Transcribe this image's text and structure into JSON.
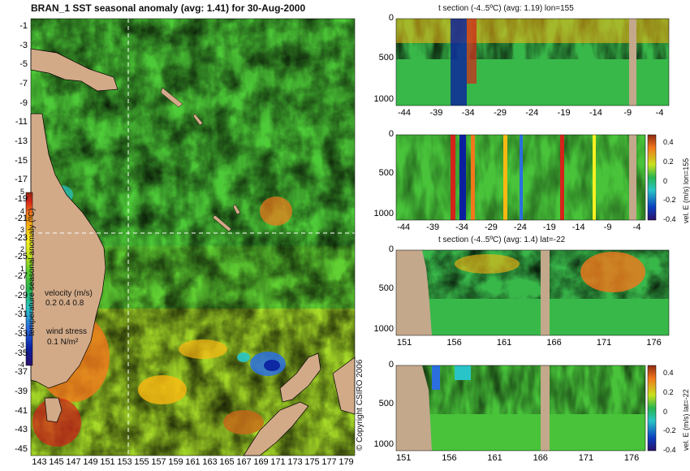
{
  "colors": {
    "land": "#d2aa88",
    "panel_bg": "#ffffff",
    "mask": "#c4a88c",
    "colormap": [
      "#2b1069",
      "#0a1fa0",
      "#2a6ee0",
      "#28c4c8",
      "#27b54f",
      "#61cf2d",
      "#c8e21d",
      "#f7f020",
      "#fbb812",
      "#f2771b",
      "#d5231a",
      "#8e2a12"
    ]
  },
  "map": {
    "title": "BRAN_1  SST seasonal anomaly  (avg: 1.41)  for 30-Aug-2000",
    "y_ticks": [
      "-1",
      "-3",
      "-5",
      "-7",
      "-9",
      "-11",
      "-13",
      "-15",
      "-17",
      "-19",
      "-21",
      "-23",
      "-25",
      "-27",
      "-29",
      "-31",
      "-33",
      "-35",
      "-37",
      "-39",
      "-41",
      "-43",
      "-45"
    ],
    "x_ticks": [
      "143",
      "145",
      "147",
      "149",
      "151",
      "153",
      "155",
      "157",
      "159",
      "161",
      "163",
      "165",
      "167",
      "169",
      "171",
      "173",
      "175",
      "177",
      "179"
    ],
    "colorbar": {
      "ticks": [
        "5",
        "4",
        "3",
        "2",
        "1",
        "0",
        "-1",
        "-2",
        "-3",
        "-4"
      ],
      "label": "temperature seasonal anomaly (ºC)",
      "range": [
        -4,
        5
      ]
    },
    "velocity_label": "velocity (m/s)",
    "velocity_scale": "0.2 0.4 0.8",
    "wind_label": "wind stress",
    "wind_scale": "0.1 N/m²",
    "section_lon": 155,
    "section_lat": -22
  },
  "panels": [
    {
      "id": "t-lon",
      "title": "t section (-4..5ºC) (avg: 1.19) lon=155",
      "x_ticks": [
        "-44",
        "-39",
        "-34",
        "-29",
        "-24",
        "-19",
        "-14",
        "-9",
        "-4"
      ],
      "y_ticks": [
        "0",
        "500",
        "1000"
      ],
      "colorbar_label": ""
    },
    {
      "id": "u-lon",
      "title": "",
      "x_ticks": [
        "-44",
        "-39",
        "-34",
        "-29",
        "-24",
        "-19",
        "-14",
        "-9",
        "-4"
      ],
      "y_ticks": [
        "0",
        "500",
        "1000"
      ],
      "colorbar_label": "vel. E (m/s) lon=155",
      "colorbar_ticks": [
        "0.4",
        "0.2",
        "0",
        "-0.2",
        "-0.4"
      ]
    },
    {
      "id": "t-lat",
      "title": "t section (-4..5ºC) (avg: 1.4) lat=-22",
      "x_ticks": [
        "151",
        "156",
        "161",
        "166",
        "171",
        "176"
      ],
      "y_ticks": [
        "0",
        "500",
        "1000"
      ],
      "colorbar_label": ""
    },
    {
      "id": "u-lat",
      "title": "",
      "x_ticks": [
        "151",
        "156",
        "161",
        "166",
        "171",
        "176"
      ],
      "y_ticks": [
        "0",
        "500",
        "1000"
      ],
      "colorbar_label": "vel. E (m/s) lat=-22",
      "colorbar_ticks": [
        "0.4",
        "0.2",
        "0",
        "-0.2",
        "-0.4"
      ]
    }
  ],
  "copyright": "© Copyright CSIRO 2006",
  "chart_data": [
    {
      "type": "heatmap",
      "title": "BRAN_1  SST seasonal anomaly  (avg: 1.41)  for 30-Aug-2000",
      "xlabel": "",
      "ylabel": "",
      "xlim": [
        142,
        180
      ],
      "ylim": [
        -45,
        0
      ],
      "x_tick_labels": [
        "143",
        "145",
        "147",
        "149",
        "151",
        "153",
        "155",
        "157",
        "159",
        "161",
        "163",
        "165",
        "167",
        "169",
        "171",
        "173",
        "175",
        "177",
        "179"
      ],
      "y_tick_labels": [
        "-1",
        "-3",
        "-5",
        "-7",
        "-9",
        "-11",
        "-13",
        "-15",
        "-17",
        "-19",
        "-21",
        "-23",
        "-25",
        "-27",
        "-29",
        "-31",
        "-33",
        "-35",
        "-37",
        "-39",
        "-41",
        "-43",
        "-45"
      ],
      "value_range": [
        -4,
        5
      ],
      "average": 1.41,
      "date": "30-Aug-2000"
    },
    {
      "type": "heatmap",
      "title": "t section (-4..5ºC) (avg: 1.19) lon=155",
      "xlim": [
        -45,
        -1
      ],
      "ylim": [
        1050,
        0
      ],
      "average": 1.19,
      "value_range": [
        -4,
        5
      ]
    },
    {
      "type": "heatmap",
      "title": "",
      "colorbar_label": "vel. E (m/s) lon=155",
      "xlim": [
        -45,
        -1
      ],
      "ylim": [
        1050,
        0
      ],
      "value_range": [
        -0.4,
        0.4
      ]
    },
    {
      "type": "heatmap",
      "title": "t section (-4..5ºC) (avg: 1.4) lat=-22",
      "xlim": [
        150,
        180
      ],
      "ylim": [
        1050,
        0
      ],
      "average": 1.4,
      "value_range": [
        -4,
        5
      ]
    },
    {
      "type": "heatmap",
      "title": "",
      "colorbar_label": "vel. E (m/s) lat=-22",
      "xlim": [
        150,
        180
      ],
      "ylim": [
        1050,
        0
      ],
      "value_range": [
        -0.4,
        0.4
      ]
    }
  ]
}
